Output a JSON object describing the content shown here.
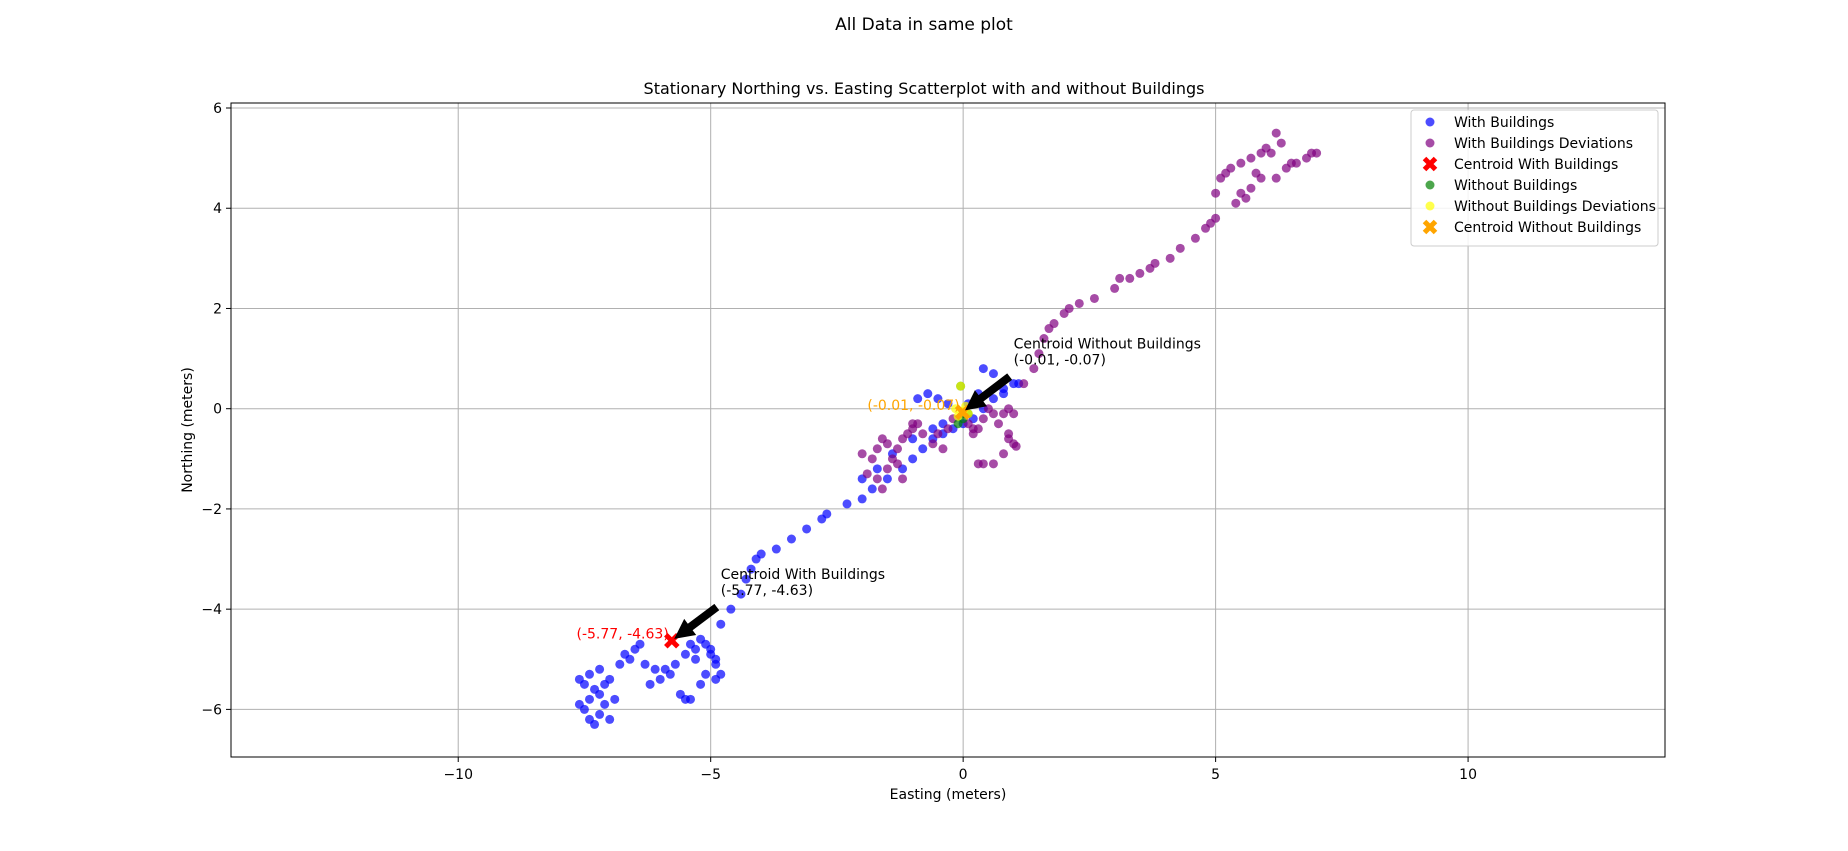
{
  "figure": {
    "suptitle": "All Data in same plot"
  },
  "chart_data": {
    "type": "scatter",
    "title": "Stationary Northing vs. Easting Scatterplot with and without Buildings",
    "xlabel": "Easting (meters)",
    "ylabel": "Northing (meters)",
    "xlim": [
      -14.5,
      13.9
    ],
    "ylim": [
      -6.95,
      6.1
    ],
    "xticks": [
      -10,
      -5,
      0,
      5,
      10
    ],
    "yticks": [
      -6,
      -4,
      -2,
      0,
      2,
      4,
      6
    ],
    "xtick_labels": [
      "−10",
      "−5",
      "0",
      "5",
      "10"
    ],
    "ytick_labels": [
      "−6",
      "−4",
      "−2",
      "0",
      "2",
      "4",
      "6"
    ],
    "grid": true,
    "legend_position": "upper right",
    "colors": {
      "with_buildings": "#0000ff",
      "with_buildings_deviations": "#800080",
      "centroid_with": "#ff0000",
      "without_buildings": "#008000",
      "without_deviations": "#ffff00",
      "centroid_without": "#ffa500"
    },
    "legend": [
      {
        "label": "With Buildings",
        "marker": "circle",
        "color": "#0000ff"
      },
      {
        "label": "With Buildings Deviations",
        "marker": "circle",
        "color": "#800080"
      },
      {
        "label": "Centroid With Buildings",
        "marker": "x",
        "color": "#ff0000"
      },
      {
        "label": "Without Buildings",
        "marker": "circle",
        "color": "#008000"
      },
      {
        "label": "Without Buildings Deviations",
        "marker": "circle",
        "color": "#ffff00"
      },
      {
        "label": "Centroid Without Buildings",
        "marker": "x",
        "color": "#ffa500"
      }
    ],
    "series": [
      {
        "name": "With Buildings",
        "color": "#0000ff",
        "points": [
          [
            -7.6,
            -5.9
          ],
          [
            -7.5,
            -6.0
          ],
          [
            -7.4,
            -5.8
          ],
          [
            -7.3,
            -6.3
          ],
          [
            -7.2,
            -6.1
          ],
          [
            -7.1,
            -5.9
          ],
          [
            -7.0,
            -6.2
          ],
          [
            -7.3,
            -5.6
          ],
          [
            -7.5,
            -5.5
          ],
          [
            -7.4,
            -5.3
          ],
          [
            -7.6,
            -5.4
          ],
          [
            -7.2,
            -5.2
          ],
          [
            -7.0,
            -5.4
          ],
          [
            -7.2,
            -5.7
          ],
          [
            -6.9,
            -5.8
          ],
          [
            -6.8,
            -5.1
          ],
          [
            -6.6,
            -5.0
          ],
          [
            -6.5,
            -4.8
          ],
          [
            -6.4,
            -4.7
          ],
          [
            -6.7,
            -4.9
          ],
          [
            -6.3,
            -5.1
          ],
          [
            -6.1,
            -5.2
          ],
          [
            -6.0,
            -5.4
          ],
          [
            -5.9,
            -5.2
          ],
          [
            -5.7,
            -5.1
          ],
          [
            -5.5,
            -4.9
          ],
          [
            -5.4,
            -4.7
          ],
          [
            -5.3,
            -4.8
          ],
          [
            -5.2,
            -4.6
          ],
          [
            -5.1,
            -4.7
          ],
          [
            -5.0,
            -4.9
          ],
          [
            -4.9,
            -5.1
          ],
          [
            -4.8,
            -5.3
          ],
          [
            -4.9,
            -5.4
          ],
          [
            -5.0,
            -4.8
          ],
          [
            -5.4,
            -5.8
          ],
          [
            -5.5,
            -5.8
          ],
          [
            -5.6,
            -5.7
          ],
          [
            -5.2,
            -5.5
          ],
          [
            -5.1,
            -5.3
          ],
          [
            -4.8,
            -4.3
          ],
          [
            -4.6,
            -4.0
          ],
          [
            -4.4,
            -3.7
          ],
          [
            -4.3,
            -3.4
          ],
          [
            -4.2,
            -3.2
          ],
          [
            -4.1,
            -3.0
          ],
          [
            -4.0,
            -2.9
          ],
          [
            -3.7,
            -2.8
          ],
          [
            -3.4,
            -2.6
          ],
          [
            -3.1,
            -2.4
          ],
          [
            -2.8,
            -2.2
          ],
          [
            -2.7,
            -2.1
          ],
          [
            -2.3,
            -1.9
          ],
          [
            -2.0,
            -1.8
          ],
          [
            -1.8,
            -1.6
          ],
          [
            -1.5,
            -1.4
          ],
          [
            -1.2,
            -1.2
          ],
          [
            -1.0,
            -1.0
          ],
          [
            -0.8,
            -0.8
          ],
          [
            -0.6,
            -0.6
          ],
          [
            -0.4,
            -0.5
          ],
          [
            -0.2,
            -0.4
          ],
          [
            0.0,
            -0.3
          ],
          [
            0.2,
            -0.2
          ],
          [
            0.4,
            0.0
          ],
          [
            0.6,
            0.2
          ],
          [
            0.8,
            0.3
          ],
          [
            1.0,
            0.5
          ],
          [
            1.1,
            0.5
          ],
          [
            0.4,
            0.8
          ],
          [
            0.6,
            0.7
          ],
          [
            0.8,
            0.4
          ],
          [
            0.3,
            0.3
          ],
          [
            0.1,
            0.1
          ],
          [
            -0.3,
            0.1
          ],
          [
            -0.5,
            0.2
          ],
          [
            -0.7,
            0.3
          ],
          [
            -0.9,
            0.2
          ],
          [
            -0.4,
            -0.3
          ],
          [
            -0.6,
            -0.4
          ],
          [
            -1.0,
            -0.6
          ],
          [
            -1.4,
            -0.9
          ],
          [
            -1.7,
            -1.2
          ],
          [
            -2.0,
            -1.4
          ],
          [
            -5.8,
            -5.3
          ],
          [
            -6.2,
            -5.5
          ],
          [
            -7.1,
            -5.5
          ],
          [
            -7.4,
            -6.2
          ],
          [
            -5.3,
            -5.0
          ],
          [
            -4.9,
            -5.0
          ]
        ]
      },
      {
        "name": "With Buildings Deviations",
        "color": "#800080",
        "points": [
          [
            -1.9,
            -1.3
          ],
          [
            -1.7,
            -1.4
          ],
          [
            -1.6,
            -1.6
          ],
          [
            -1.5,
            -1.2
          ],
          [
            -1.4,
            -1.0
          ],
          [
            -1.3,
            -0.8
          ],
          [
            -1.2,
            -0.6
          ],
          [
            -1.1,
            -0.5
          ],
          [
            -1.0,
            -0.4
          ],
          [
            -0.9,
            -0.3
          ],
          [
            -1.8,
            -1.0
          ],
          [
            -1.7,
            -0.8
          ],
          [
            -1.6,
            -0.6
          ],
          [
            -1.5,
            -0.7
          ],
          [
            -1.3,
            -1.1
          ],
          [
            -1.2,
            -1.4
          ],
          [
            -0.8,
            -0.5
          ],
          [
            -0.6,
            -0.7
          ],
          [
            -0.5,
            -0.5
          ],
          [
            -0.3,
            -0.4
          ],
          [
            -0.2,
            -0.2
          ],
          [
            0.0,
            -0.1
          ],
          [
            0.1,
            -0.3
          ],
          [
            0.2,
            -0.5
          ],
          [
            0.3,
            -0.4
          ],
          [
            0.4,
            -0.2
          ],
          [
            0.5,
            0.0
          ],
          [
            0.6,
            -0.1
          ],
          [
            0.7,
            -0.3
          ],
          [
            0.8,
            -0.1
          ],
          [
            0.9,
            0.0
          ],
          [
            1.0,
            -0.1
          ],
          [
            0.9,
            -0.5
          ],
          [
            1.0,
            -0.7
          ],
          [
            0.8,
            -0.9
          ],
          [
            0.6,
            -1.1
          ],
          [
            0.4,
            -1.1
          ],
          [
            0.3,
            -1.1
          ],
          [
            0.9,
            -0.6
          ],
          [
            1.05,
            -0.75
          ],
          [
            -0.4,
            -0.8
          ],
          [
            0.2,
            -0.4
          ],
          [
            1.2,
            0.5
          ],
          [
            1.4,
            0.8
          ],
          [
            1.5,
            1.1
          ],
          [
            1.6,
            1.4
          ],
          [
            1.7,
            1.6
          ],
          [
            1.8,
            1.7
          ],
          [
            2.0,
            1.9
          ],
          [
            2.1,
            2.0
          ],
          [
            2.3,
            2.1
          ],
          [
            2.6,
            2.2
          ],
          [
            3.0,
            2.4
          ],
          [
            3.1,
            2.6
          ],
          [
            3.3,
            2.6
          ],
          [
            3.5,
            2.7
          ],
          [
            3.7,
            2.8
          ],
          [
            3.8,
            2.9
          ],
          [
            4.1,
            3.0
          ],
          [
            4.3,
            3.2
          ],
          [
            4.6,
            3.4
          ],
          [
            4.8,
            3.6
          ],
          [
            4.9,
            3.7
          ],
          [
            5.0,
            3.8
          ],
          [
            5.0,
            4.3
          ],
          [
            5.1,
            4.6
          ],
          [
            5.2,
            4.7
          ],
          [
            5.3,
            4.8
          ],
          [
            5.5,
            4.9
          ],
          [
            5.7,
            5.0
          ],
          [
            5.8,
            4.7
          ],
          [
            5.9,
            5.1
          ],
          [
            6.0,
            5.2
          ],
          [
            6.1,
            5.1
          ],
          [
            6.2,
            5.5
          ],
          [
            6.3,
            5.3
          ],
          [
            6.4,
            4.8
          ],
          [
            6.5,
            4.9
          ],
          [
            6.6,
            4.9
          ],
          [
            6.8,
            5.0
          ],
          [
            6.9,
            5.1
          ],
          [
            7.0,
            5.1
          ],
          [
            5.5,
            4.3
          ],
          [
            5.7,
            4.4
          ],
          [
            5.9,
            4.6
          ],
          [
            6.2,
            4.6
          ],
          [
            5.4,
            4.1
          ],
          [
            5.6,
            4.2
          ],
          [
            -2.0,
            -0.9
          ],
          [
            -1.0,
            -0.3
          ]
        ]
      },
      {
        "name": "Without Buildings",
        "color": "#008000",
        "points": [
          [
            -0.1,
            -0.3
          ],
          [
            0.0,
            -0.2
          ],
          [
            0.1,
            -0.1
          ],
          [
            -0.05,
            0.45
          ]
        ]
      },
      {
        "name": "Without Buildings Deviations",
        "color": "#ffff00",
        "points": [
          [
            -0.1,
            -0.15
          ],
          [
            0.0,
            -0.05
          ],
          [
            0.05,
            0.05
          ],
          [
            -0.15,
            0.0
          ],
          [
            0.1,
            -0.1
          ],
          [
            -0.05,
            0.45
          ]
        ]
      }
    ],
    "centroids": [
      {
        "name": "Centroid With Buildings",
        "x": -5.77,
        "y": -4.63,
        "color": "#ff0000",
        "value_label": "(-5.77, -4.63)",
        "annotation_line1": "Centroid With Buildings",
        "annotation_line2": "(-5.77, -4.63)",
        "text_x": -4.8,
        "text_y": -3.4
      },
      {
        "name": "Centroid Without Buildings",
        "x": -0.01,
        "y": -0.07,
        "color": "#ffa500",
        "value_label": "(-0.01, -0.07)",
        "annotation_line1": "Centroid Without Buildings",
        "annotation_line2": "(-0.01, -0.07)",
        "text_x": 1.0,
        "text_y": 1.2
      }
    ]
  }
}
